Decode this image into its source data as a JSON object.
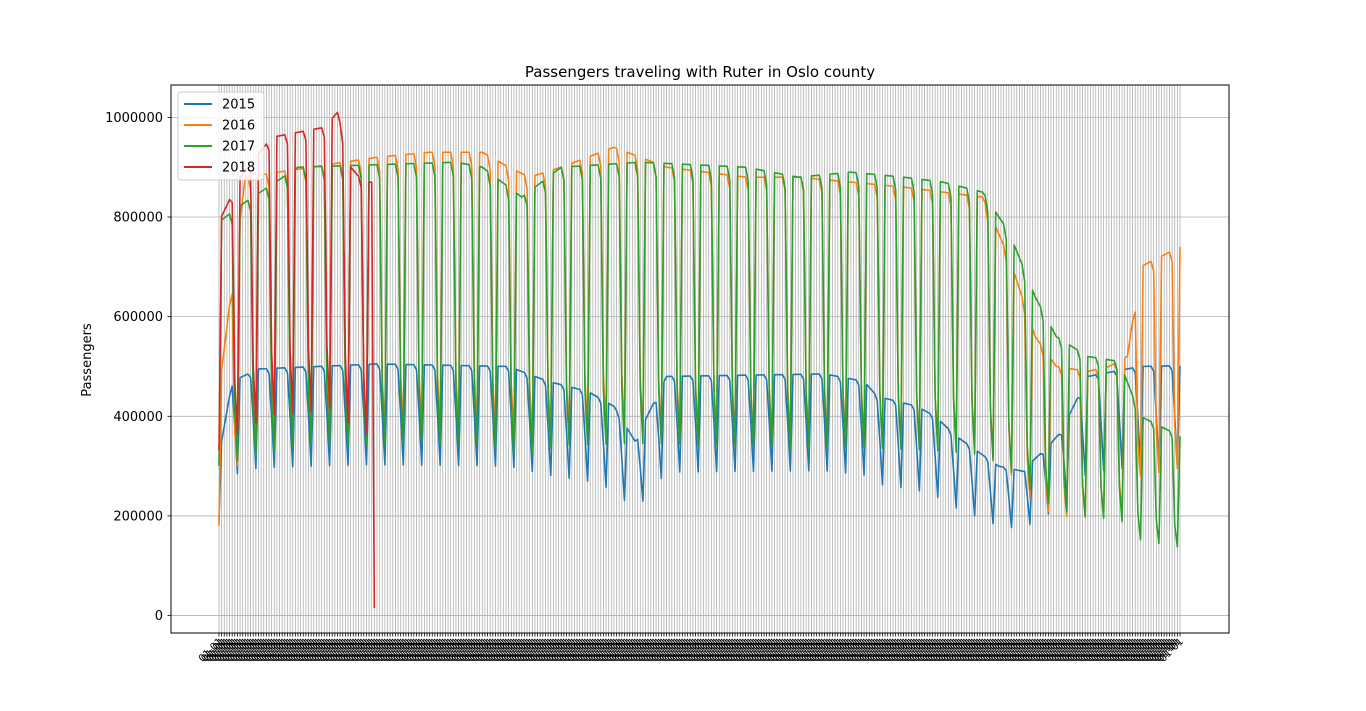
{
  "chart_data": {
    "type": "line",
    "title": "Passengers traveling with Ruter in Oslo county",
    "xlabel": "",
    "ylabel": "Passengers",
    "ylim": [
      -35000,
      1065000
    ],
    "yticks": [
      0,
      200000,
      400000,
      600000,
      800000,
      1000000
    ],
    "ytick_labels": [
      "0",
      "200000",
      "400000",
      "600000",
      "800000",
      "1000000"
    ],
    "x_count": 366,
    "x_tick_text": "01-01",
    "grid": true,
    "legend_position": "upper-left",
    "colors": {
      "2015": "#1f77b4",
      "2016": "#ff7f0e",
      "2017": "#2ca02c",
      "2018": "#d62728"
    },
    "series": [
      {
        "name": "2015",
        "start": 0,
        "length": 366,
        "weekly_pattern": [
          0.6,
          1.0,
          1.0,
          1.0,
          1.0,
          0.98,
          0.8
        ],
        "envelope": [
          [
            0,
            320000
          ],
          [
            5,
            470000
          ],
          [
            15,
            495000
          ],
          [
            60,
            505000
          ],
          [
            110,
            500000
          ],
          [
            125,
            470000
          ],
          [
            140,
            450000
          ],
          [
            150,
            420000
          ],
          [
            158,
            350000
          ],
          [
            170,
            480000
          ],
          [
            230,
            485000
          ],
          [
            245,
            470000
          ],
          [
            250,
            440000
          ],
          [
            265,
            420000
          ],
          [
            272,
            400000
          ],
          [
            280,
            360000
          ],
          [
            288,
            330000
          ],
          [
            296,
            300000
          ],
          [
            305,
            290000
          ],
          [
            315,
            340000
          ],
          [
            320,
            370000
          ],
          [
            330,
            480000
          ],
          [
            350,
            500000
          ],
          [
            400,
            505000
          ],
          [
            450,
            510000
          ],
          [
            500,
            520000
          ],
          [
            520,
            515000
          ],
          [
            540,
            510000
          ],
          [
            560,
            520000
          ],
          [
            575,
            490000
          ],
          [
            585,
            380000
          ],
          [
            589,
            300000
          ],
          [
            600,
            300000
          ]
        ]
      },
      {
        "name": "2016",
        "start": 0,
        "length": 366,
        "weekly_pattern": [
          0.4,
          1.0,
          1.0,
          1.0,
          1.0,
          0.97,
          0.52
        ],
        "envelope": [
          [
            0,
            450000
          ],
          [
            10,
            880000
          ],
          [
            60,
            920000
          ],
          [
            80,
            930000
          ],
          [
            100,
            930000
          ],
          [
            110,
            900000
          ],
          [
            118,
            880000
          ],
          [
            130,
            900000
          ],
          [
            150,
            940000
          ],
          [
            170,
            900000
          ],
          [
            200,
            880000
          ],
          [
            220,
            880000
          ],
          [
            240,
            870000
          ],
          [
            260,
            860000
          ],
          [
            275,
            850000
          ],
          [
            290,
            840000
          ],
          [
            300,
            720000
          ],
          [
            310,
            560000
          ],
          [
            318,
            500000
          ],
          [
            330,
            490000
          ],
          [
            338,
            500000
          ],
          [
            345,
            520000
          ],
          [
            350,
            700000
          ],
          [
            365,
            740000
          ]
        ]
      },
      {
        "name": "2017",
        "start": 0,
        "length": 366,
        "weekly_pattern": [
          0.38,
          1.0,
          1.0,
          1.0,
          1.0,
          0.97,
          0.5
        ],
        "envelope": [
          [
            0,
            790000
          ],
          [
            10,
            830000
          ],
          [
            30,
            900000
          ],
          [
            60,
            905000
          ],
          [
            90,
            910000
          ],
          [
            100,
            900000
          ],
          [
            115,
            840000
          ],
          [
            130,
            900000
          ],
          [
            160,
            910000
          ],
          [
            200,
            900000
          ],
          [
            220,
            880000
          ],
          [
            240,
            890000
          ],
          [
            260,
            880000
          ],
          [
            275,
            870000
          ],
          [
            290,
            850000
          ],
          [
            300,
            770000
          ],
          [
            310,
            640000
          ],
          [
            318,
            560000
          ],
          [
            330,
            520000
          ],
          [
            342,
            510000
          ],
          [
            350,
            400000
          ],
          [
            365,
            360000
          ]
        ]
      },
      {
        "name": "2018",
        "start": 0,
        "length": 60,
        "weekly_pattern": [
          0.42,
          1.0,
          1.0,
          1.0,
          1.0,
          0.98,
          0.55
        ],
        "envelope": [
          [
            0,
            790000
          ],
          [
            8,
            880000
          ],
          [
            20,
            960000
          ],
          [
            30,
            970000
          ],
          [
            40,
            980000
          ],
          [
            45,
            1010000
          ],
          [
            50,
            900000
          ],
          [
            55,
            870000
          ],
          [
            59,
            870000
          ]
        ]
      }
    ]
  }
}
